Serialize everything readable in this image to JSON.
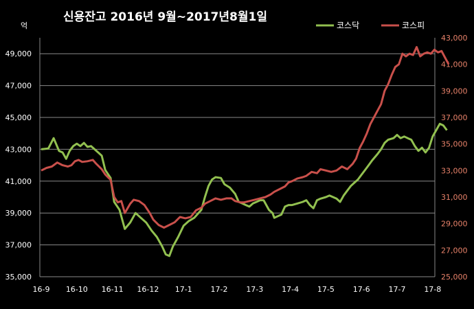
{
  "chart_data": {
    "type": "line",
    "title": "신용잔고 2016년 9월~2017년8월1일",
    "left_axis_unit": "억",
    "left_axis": {
      "min": 35000,
      "max": 50000,
      "ticks": [
        "35,000",
        "37,000",
        "39,000",
        "41,000",
        "43,000",
        "45,000",
        "47,000",
        "49,000"
      ],
      "tick_values": [
        35000,
        37000,
        39000,
        41000,
        43000,
        45000,
        47000,
        49000
      ]
    },
    "right_axis": {
      "min": 25000,
      "max": 43000,
      "ticks": [
        "25,000",
        "27,000",
        "29,000",
        "31,000",
        "33,000",
        "35,000",
        "37,000",
        "39,000",
        "41,000",
        "43,000"
      ],
      "tick_values": [
        25000,
        27000,
        29000,
        31000,
        33000,
        35000,
        37000,
        39000,
        41000,
        43000
      ]
    },
    "x_ticks": [
      "16-9",
      "16-10",
      "16-11",
      "16-12",
      "17-1",
      "17-2",
      "17-3",
      "17-4",
      "17-5",
      "17-6",
      "17-7",
      "17-8"
    ],
    "grid": true,
    "legend_position": "top-right",
    "series": [
      {
        "name": "코스닥",
        "axis": "left",
        "color": "#92c050",
        "points": [
          [
            0.0,
            43000
          ],
          [
            0.2,
            43050
          ],
          [
            0.35,
            43700
          ],
          [
            0.5,
            42900
          ],
          [
            0.6,
            42800
          ],
          [
            0.7,
            42400
          ],
          [
            0.8,
            42900
          ],
          [
            0.9,
            43200
          ],
          [
            1.0,
            43350
          ],
          [
            1.1,
            43200
          ],
          [
            1.2,
            43400
          ],
          [
            1.3,
            43150
          ],
          [
            1.4,
            43200
          ],
          [
            1.5,
            43000
          ],
          [
            1.6,
            42800
          ],
          [
            1.7,
            42600
          ],
          [
            1.8,
            41700
          ],
          [
            1.95,
            41200
          ],
          [
            2.05,
            39700
          ],
          [
            2.2,
            39200
          ],
          [
            2.35,
            38000
          ],
          [
            2.5,
            38400
          ],
          [
            2.65,
            39000
          ],
          [
            2.8,
            38700
          ],
          [
            2.95,
            38400
          ],
          [
            3.1,
            37900
          ],
          [
            3.25,
            37500
          ],
          [
            3.4,
            36900
          ],
          [
            3.5,
            36400
          ],
          [
            3.6,
            36300
          ],
          [
            3.7,
            36900
          ],
          [
            3.85,
            37500
          ],
          [
            4.0,
            38200
          ],
          [
            4.15,
            38500
          ],
          [
            4.3,
            38700
          ],
          [
            4.5,
            39200
          ],
          [
            4.6,
            40000
          ],
          [
            4.7,
            40700
          ],
          [
            4.8,
            41100
          ],
          [
            4.9,
            41250
          ],
          [
            5.05,
            41200
          ],
          [
            5.15,
            40800
          ],
          [
            5.3,
            40600
          ],
          [
            5.45,
            40200
          ],
          [
            5.55,
            39700
          ],
          [
            5.65,
            39600
          ],
          [
            5.75,
            39500
          ],
          [
            5.85,
            39400
          ],
          [
            5.95,
            39600
          ],
          [
            6.05,
            39700
          ],
          [
            6.15,
            39800
          ],
          [
            6.25,
            39800
          ],
          [
            6.4,
            39200
          ],
          [
            6.5,
            39000
          ],
          [
            6.55,
            38700
          ],
          [
            6.65,
            38800
          ],
          [
            6.75,
            38900
          ],
          [
            6.85,
            39400
          ],
          [
            6.95,
            39500
          ],
          [
            7.05,
            39500
          ],
          [
            7.2,
            39600
          ],
          [
            7.35,
            39700
          ],
          [
            7.45,
            39800
          ],
          [
            7.55,
            39500
          ],
          [
            7.65,
            39300
          ],
          [
            7.75,
            39800
          ],
          [
            7.85,
            39900
          ],
          [
            8.0,
            40000
          ],
          [
            8.1,
            40100
          ],
          [
            8.2,
            40000
          ],
          [
            8.3,
            39900
          ],
          [
            8.4,
            39700
          ],
          [
            8.5,
            40100
          ],
          [
            8.6,
            40400
          ],
          [
            8.7,
            40700
          ],
          [
            8.8,
            40900
          ],
          [
            8.9,
            41100
          ],
          [
            9.0,
            41400
          ],
          [
            9.1,
            41700
          ],
          [
            9.2,
            42000
          ],
          [
            9.3,
            42300
          ],
          [
            9.45,
            42700
          ],
          [
            9.55,
            43000
          ],
          [
            9.65,
            43400
          ],
          [
            9.75,
            43600
          ],
          [
            9.9,
            43700
          ],
          [
            10.0,
            43900
          ],
          [
            10.1,
            43700
          ],
          [
            10.2,
            43800
          ],
          [
            10.3,
            43700
          ],
          [
            10.4,
            43600
          ],
          [
            10.5,
            43200
          ],
          [
            10.6,
            42900
          ],
          [
            10.7,
            43100
          ],
          [
            10.8,
            42800
          ],
          [
            10.9,
            43100
          ],
          [
            11.0,
            43800
          ],
          [
            11.1,
            44200
          ],
          [
            11.2,
            44600
          ],
          [
            11.3,
            44500
          ],
          [
            11.4,
            44200
          ]
        ]
      },
      {
        "name": "코스피",
        "axis": "right",
        "color": "#c9504b",
        "points": [
          [
            0.0,
            33000
          ],
          [
            0.15,
            33200
          ],
          [
            0.3,
            33300
          ],
          [
            0.45,
            33600
          ],
          [
            0.6,
            33400
          ],
          [
            0.75,
            33300
          ],
          [
            0.85,
            33400
          ],
          [
            0.95,
            33700
          ],
          [
            1.05,
            33800
          ],
          [
            1.15,
            33650
          ],
          [
            1.3,
            33700
          ],
          [
            1.45,
            33800
          ],
          [
            1.55,
            33500
          ],
          [
            1.7,
            33100
          ],
          [
            1.8,
            32700
          ],
          [
            1.95,
            32300
          ],
          [
            2.05,
            31000
          ],
          [
            2.15,
            30600
          ],
          [
            2.25,
            30700
          ],
          [
            2.35,
            29800
          ],
          [
            2.5,
            30500
          ],
          [
            2.6,
            30800
          ],
          [
            2.75,
            30700
          ],
          [
            2.9,
            30400
          ],
          [
            3.05,
            29800
          ],
          [
            3.15,
            29300
          ],
          [
            3.3,
            28900
          ],
          [
            3.45,
            28700
          ],
          [
            3.6,
            28900
          ],
          [
            3.75,
            29100
          ],
          [
            3.9,
            29500
          ],
          [
            4.05,
            29400
          ],
          [
            4.2,
            29500
          ],
          [
            4.35,
            30000
          ],
          [
            4.5,
            30200
          ],
          [
            4.6,
            30500
          ],
          [
            4.75,
            30700
          ],
          [
            4.9,
            30900
          ],
          [
            5.05,
            30800
          ],
          [
            5.2,
            30900
          ],
          [
            5.35,
            30900
          ],
          [
            5.45,
            30700
          ],
          [
            5.6,
            30600
          ],
          [
            5.7,
            30600
          ],
          [
            5.85,
            30700
          ],
          [
            6.0,
            30800
          ],
          [
            6.15,
            30900
          ],
          [
            6.3,
            31000
          ],
          [
            6.45,
            31200
          ],
          [
            6.55,
            31400
          ],
          [
            6.7,
            31600
          ],
          [
            6.85,
            31800
          ],
          [
            6.95,
            32100
          ],
          [
            7.05,
            32200
          ],
          [
            7.2,
            32400
          ],
          [
            7.35,
            32500
          ],
          [
            7.45,
            32600
          ],
          [
            7.6,
            32900
          ],
          [
            7.75,
            32800
          ],
          [
            7.85,
            33100
          ],
          [
            8.0,
            33000
          ],
          [
            8.15,
            32900
          ],
          [
            8.3,
            33000
          ],
          [
            8.45,
            33300
          ],
          [
            8.6,
            33100
          ],
          [
            8.75,
            33500
          ],
          [
            8.85,
            33900
          ],
          [
            8.95,
            34700
          ],
          [
            9.05,
            35200
          ],
          [
            9.15,
            35800
          ],
          [
            9.25,
            36500
          ],
          [
            9.35,
            37000
          ],
          [
            9.45,
            37500
          ],
          [
            9.55,
            38000
          ],
          [
            9.65,
            39000
          ],
          [
            9.75,
            39500
          ],
          [
            9.85,
            40200
          ],
          [
            9.95,
            40800
          ],
          [
            10.05,
            41000
          ],
          [
            10.15,
            41800
          ],
          [
            10.25,
            41600
          ],
          [
            10.35,
            41800
          ],
          [
            10.45,
            41700
          ],
          [
            10.55,
            42300
          ],
          [
            10.65,
            41600
          ],
          [
            10.75,
            41800
          ],
          [
            10.85,
            41900
          ],
          [
            10.95,
            41800
          ],
          [
            11.05,
            42100
          ],
          [
            11.15,
            41900
          ],
          [
            11.25,
            42000
          ],
          [
            11.35,
            41500
          ],
          [
            11.45,
            41000
          ]
        ]
      }
    ]
  }
}
